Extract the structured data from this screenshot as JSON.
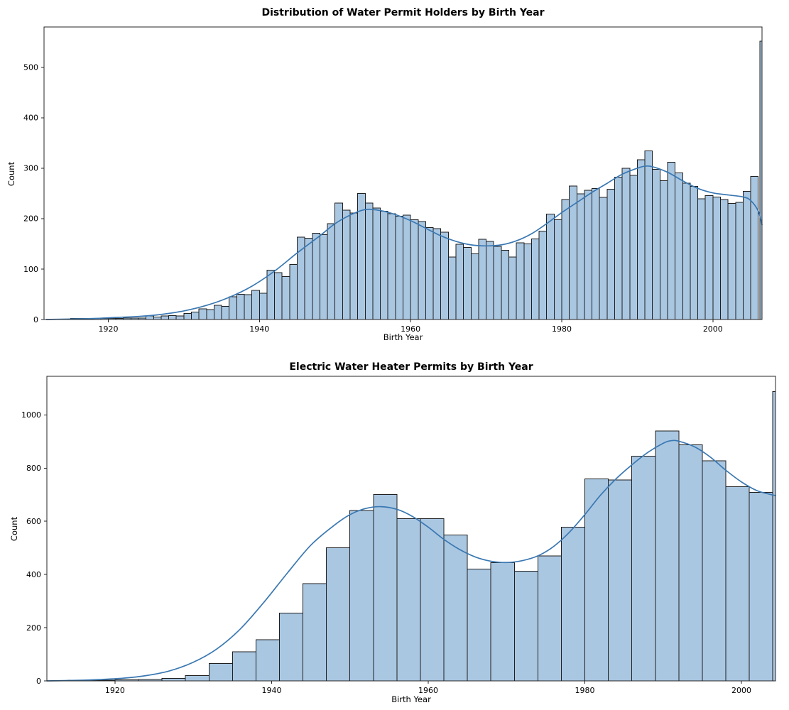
{
  "colors": {
    "bar_fill": "#aac7e2",
    "bar_edge": "#1f1f1f",
    "kde_line": "#3a78b2",
    "axis": "#262626",
    "tick_text": "#000000"
  },
  "chart_data": [
    {
      "type": "bar",
      "subtype": "histogram_with_kde",
      "title": "Distribution of Water Permit Holders by Birth Year",
      "xlabel": "Birth Year",
      "ylabel": "Count",
      "xlim": [
        1911.5,
        2006.5
      ],
      "ylim": [
        0,
        580
      ],
      "xticks": [
        1920,
        1940,
        1960,
        1980,
        2000
      ],
      "yticks": [
        0,
        100,
        200,
        300,
        400,
        500
      ],
      "grid": false,
      "legend": "none",
      "bins_start": 1915,
      "bin_width": 1,
      "values": [
        2,
        2,
        2,
        2,
        2,
        2,
        2,
        3,
        3,
        3,
        7,
        5,
        7,
        8,
        7,
        12,
        15,
        21,
        20,
        28,
        26,
        45,
        50,
        49,
        58,
        52,
        98,
        93,
        85,
        109,
        163,
        161,
        171,
        168,
        190,
        231,
        217,
        211,
        250,
        231,
        221,
        215,
        210,
        205,
        207,
        198,
        194,
        182,
        180,
        173,
        124,
        149,
        143,
        130,
        159,
        155,
        145,
        137,
        124,
        152,
        150,
        160,
        175,
        209,
        198,
        238,
        265,
        249,
        256,
        260,
        242,
        258,
        282,
        300,
        286,
        317,
        334,
        298,
        275,
        312,
        291,
        270,
        264,
        239,
        246,
        243,
        238,
        230,
        232,
        254,
        284
      ],
      "edge_spike": {
        "x": 2006.2,
        "width": 0.3,
        "value": 552
      },
      "kde": {
        "x": [
          1911.8,
          1915,
          1918,
          1921,
          1924,
          1927,
          1930,
          1933,
          1936,
          1939,
          1942,
          1945,
          1948,
          1950,
          1952,
          1954,
          1956,
          1958,
          1960,
          1962,
          1964,
          1966,
          1968,
          1970,
          1972,
          1974,
          1976,
          1978,
          1980,
          1982,
          1984,
          1986,
          1988,
          1990,
          1991,
          1992,
          1994,
          1996,
          1998,
          2000,
          2002,
          2004,
          2005,
          2006,
          2006.5
        ],
        "y": [
          0,
          1,
          2,
          4,
          6,
          10,
          17,
          28,
          44,
          66,
          96,
          132,
          166,
          190,
          207,
          218,
          216,
          208,
          196,
          181,
          166,
          155,
          148,
          146,
          148,
          156,
          170,
          190,
          212,
          232,
          252,
          270,
          288,
          300,
          304,
          303,
          292,
          275,
          260,
          251,
          247,
          243,
          236,
          215,
          188
        ]
      }
    },
    {
      "type": "bar",
      "subtype": "histogram_with_kde",
      "title": "Electric Water Heater Permits by Birth Year",
      "xlabel": "Birth Year",
      "ylabel": "Count",
      "xlim": [
        1911.3,
        2004.35
      ],
      "ylim": [
        0,
        1145
      ],
      "xticks": [
        1920,
        1940,
        1960,
        1980,
        2000
      ],
      "yticks": [
        0,
        200,
        400,
        600,
        800,
        1000
      ],
      "grid": false,
      "legend": "none",
      "bins_start": 1914,
      "bin_width": 3,
      "values": [
        3,
        3,
        4,
        5,
        9,
        20,
        65,
        110,
        155,
        255,
        365,
        500,
        640,
        700,
        610,
        610,
        548,
        420,
        445,
        412,
        470,
        578,
        760,
        756,
        845,
        940,
        888,
        828,
        730,
        708
      ],
      "edge_spike": {
        "x": 2004.0,
        "width": 0.35,
        "value": 1088
      },
      "kde": {
        "x": [
          1911.3,
          1915,
          1918,
          1921,
          1924,
          1927,
          1930,
          1933,
          1936,
          1939,
          1942,
          1945,
          1948,
          1950,
          1952,
          1954,
          1956,
          1958,
          1960,
          1962,
          1964,
          1966,
          1968,
          1970,
          1972,
          1974,
          1976,
          1978,
          1980,
          1982,
          1984,
          1986,
          1988,
          1990,
          1991,
          1992,
          1994,
          1996,
          1998,
          2000,
          2002,
          2004,
          2004.35
        ],
        "y": [
          0,
          2,
          5,
          10,
          20,
          38,
          70,
          120,
          195,
          295,
          405,
          510,
          585,
          625,
          648,
          655,
          645,
          618,
          578,
          532,
          494,
          466,
          450,
          445,
          452,
          470,
          505,
          558,
          625,
          698,
          760,
          812,
          858,
          893,
          903,
          901,
          880,
          842,
          792,
          748,
          715,
          699,
          697
        ]
      }
    }
  ]
}
